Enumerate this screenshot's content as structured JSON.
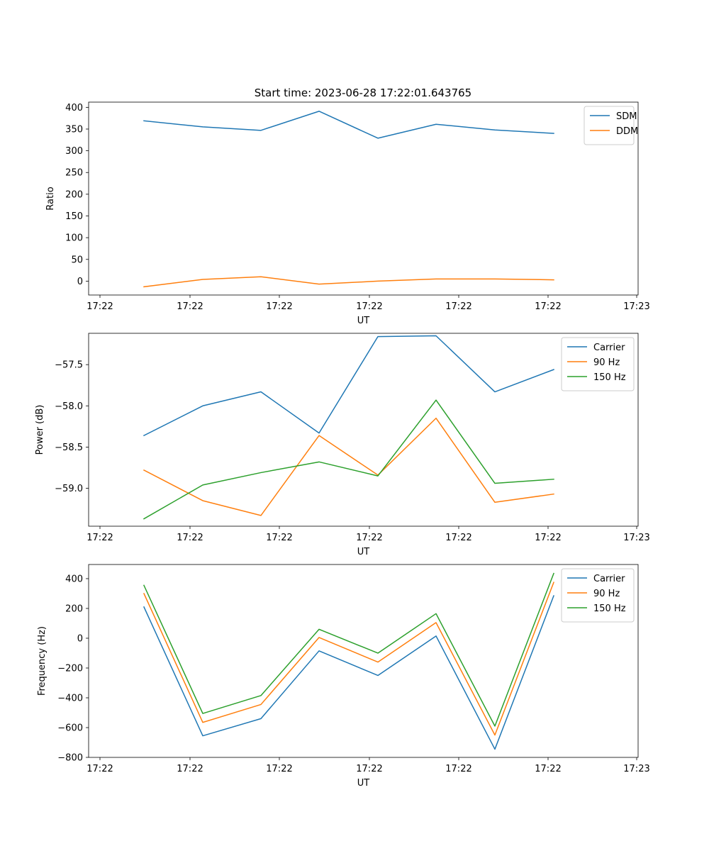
{
  "figure": {
    "title": "Start time: 2023-06-28 17:22:01.643765"
  },
  "chart_data": [
    {
      "type": "line",
      "xlabel": "UT",
      "ylabel": "Ratio",
      "x_ticks": [
        "17:22",
        "17:22",
        "17:22",
        "17:22",
        "17:22",
        "17:22",
        "17:23"
      ],
      "y_ticks": [
        "0",
        "50",
        "100",
        "150",
        "200",
        "250",
        "300",
        "350",
        "400"
      ],
      "ylim": [
        -32,
        412
      ],
      "legend": "top-right",
      "grid": false,
      "series": [
        {
          "name": "SDM",
          "color": "#1f77b4",
          "values": [
            369,
            355,
            347,
            391,
            329,
            361,
            348,
            340
          ]
        },
        {
          "name": "DDM",
          "color": "#ff7f0e",
          "values": [
            -13,
            4,
            10,
            -7,
            0,
            5,
            5,
            3
          ]
        }
      ]
    },
    {
      "type": "line",
      "xlabel": "UT",
      "ylabel": "Power (dB)",
      "x_ticks": [
        "17:22",
        "17:22",
        "17:22",
        "17:22",
        "17:22",
        "17:22",
        "17:23"
      ],
      "y_ticks": [
        "−57.5",
        "−58.0",
        "−58.5",
        "−59.0"
      ],
      "ylim": [
        -59.46,
        -57.12
      ],
      "legend": "top-right",
      "grid": false,
      "series": [
        {
          "name": "Carrier",
          "color": "#1f77b4",
          "values": [
            -58.36,
            -58.0,
            -57.83,
            -58.33,
            -57.16,
            -57.15,
            -57.83,
            -57.56
          ]
        },
        {
          "name": "90 Hz",
          "color": "#ff7f0e",
          "values": [
            -58.78,
            -59.15,
            -59.33,
            -58.36,
            -58.84,
            -58.15,
            -59.17,
            -59.07
          ]
        },
        {
          "name": "150 Hz",
          "color": "#2ca02c",
          "values": [
            -59.37,
            -58.96,
            -58.81,
            -58.68,
            -58.85,
            -57.93,
            -58.94,
            -58.89
          ]
        }
      ]
    },
    {
      "type": "line",
      "xlabel": "UT",
      "ylabel": "Frequency (Hz)",
      "x_ticks": [
        "17:22",
        "17:22",
        "17:22",
        "17:22",
        "17:22",
        "17:22",
        "17:23"
      ],
      "y_ticks": [
        "−800",
        "−600",
        "−400",
        "−200",
        "0",
        "200",
        "400"
      ],
      "ylim": [
        -800,
        495
      ],
      "legend": "top-right",
      "grid": false,
      "series": [
        {
          "name": "Carrier",
          "color": "#1f77b4",
          "values": [
            210,
            -655,
            -540,
            -85,
            -250,
            15,
            -745,
            285
          ]
        },
        {
          "name": "90 Hz",
          "color": "#ff7f0e",
          "values": [
            300,
            -565,
            -445,
            5,
            -160,
            105,
            -650,
            375
          ]
        },
        {
          "name": "150 Hz",
          "color": "#2ca02c",
          "values": [
            355,
            -505,
            -385,
            60,
            -100,
            165,
            -590,
            435
          ]
        }
      ]
    }
  ]
}
